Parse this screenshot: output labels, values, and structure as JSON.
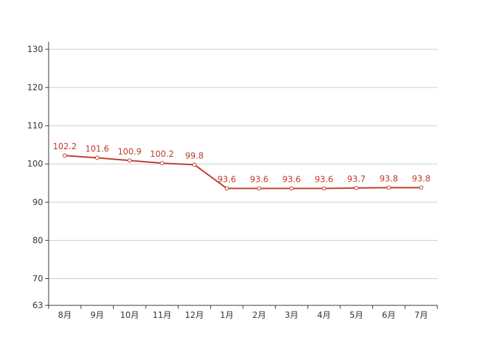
{
  "chart_data": {
    "type": "line",
    "categories": [
      "8月",
      "9月",
      "10月",
      "11月",
      "12月",
      "1月",
      "2月",
      "3月",
      "4月",
      "5月",
      "6月",
      "7月"
    ],
    "series": [
      {
        "values": [
          102.2,
          101.6,
          100.9,
          100.2,
          99.8,
          93.6,
          93.6,
          93.6,
          93.6,
          93.7,
          93.8,
          93.8
        ],
        "data_labels": [
          "102.2",
          "101.6",
          "100.9",
          "100.2",
          "99.8",
          "93.6",
          "93.6",
          "93.6",
          "93.6",
          "93.7",
          "93.8",
          "93.8"
        ]
      }
    ],
    "ylim": [
      63,
      132
    ],
    "y_ticks": [
      63,
      70,
      80,
      90,
      100,
      110,
      120,
      130
    ],
    "y_tick_labels": [
      "63",
      "70",
      "80",
      "90",
      "100",
      "110",
      "120",
      "130"
    ],
    "grid": true,
    "legend": "none",
    "colors": {
      "series": "#c0392b",
      "label": "#c0392b",
      "grid": "#cccccc",
      "axis": "#333333"
    }
  }
}
